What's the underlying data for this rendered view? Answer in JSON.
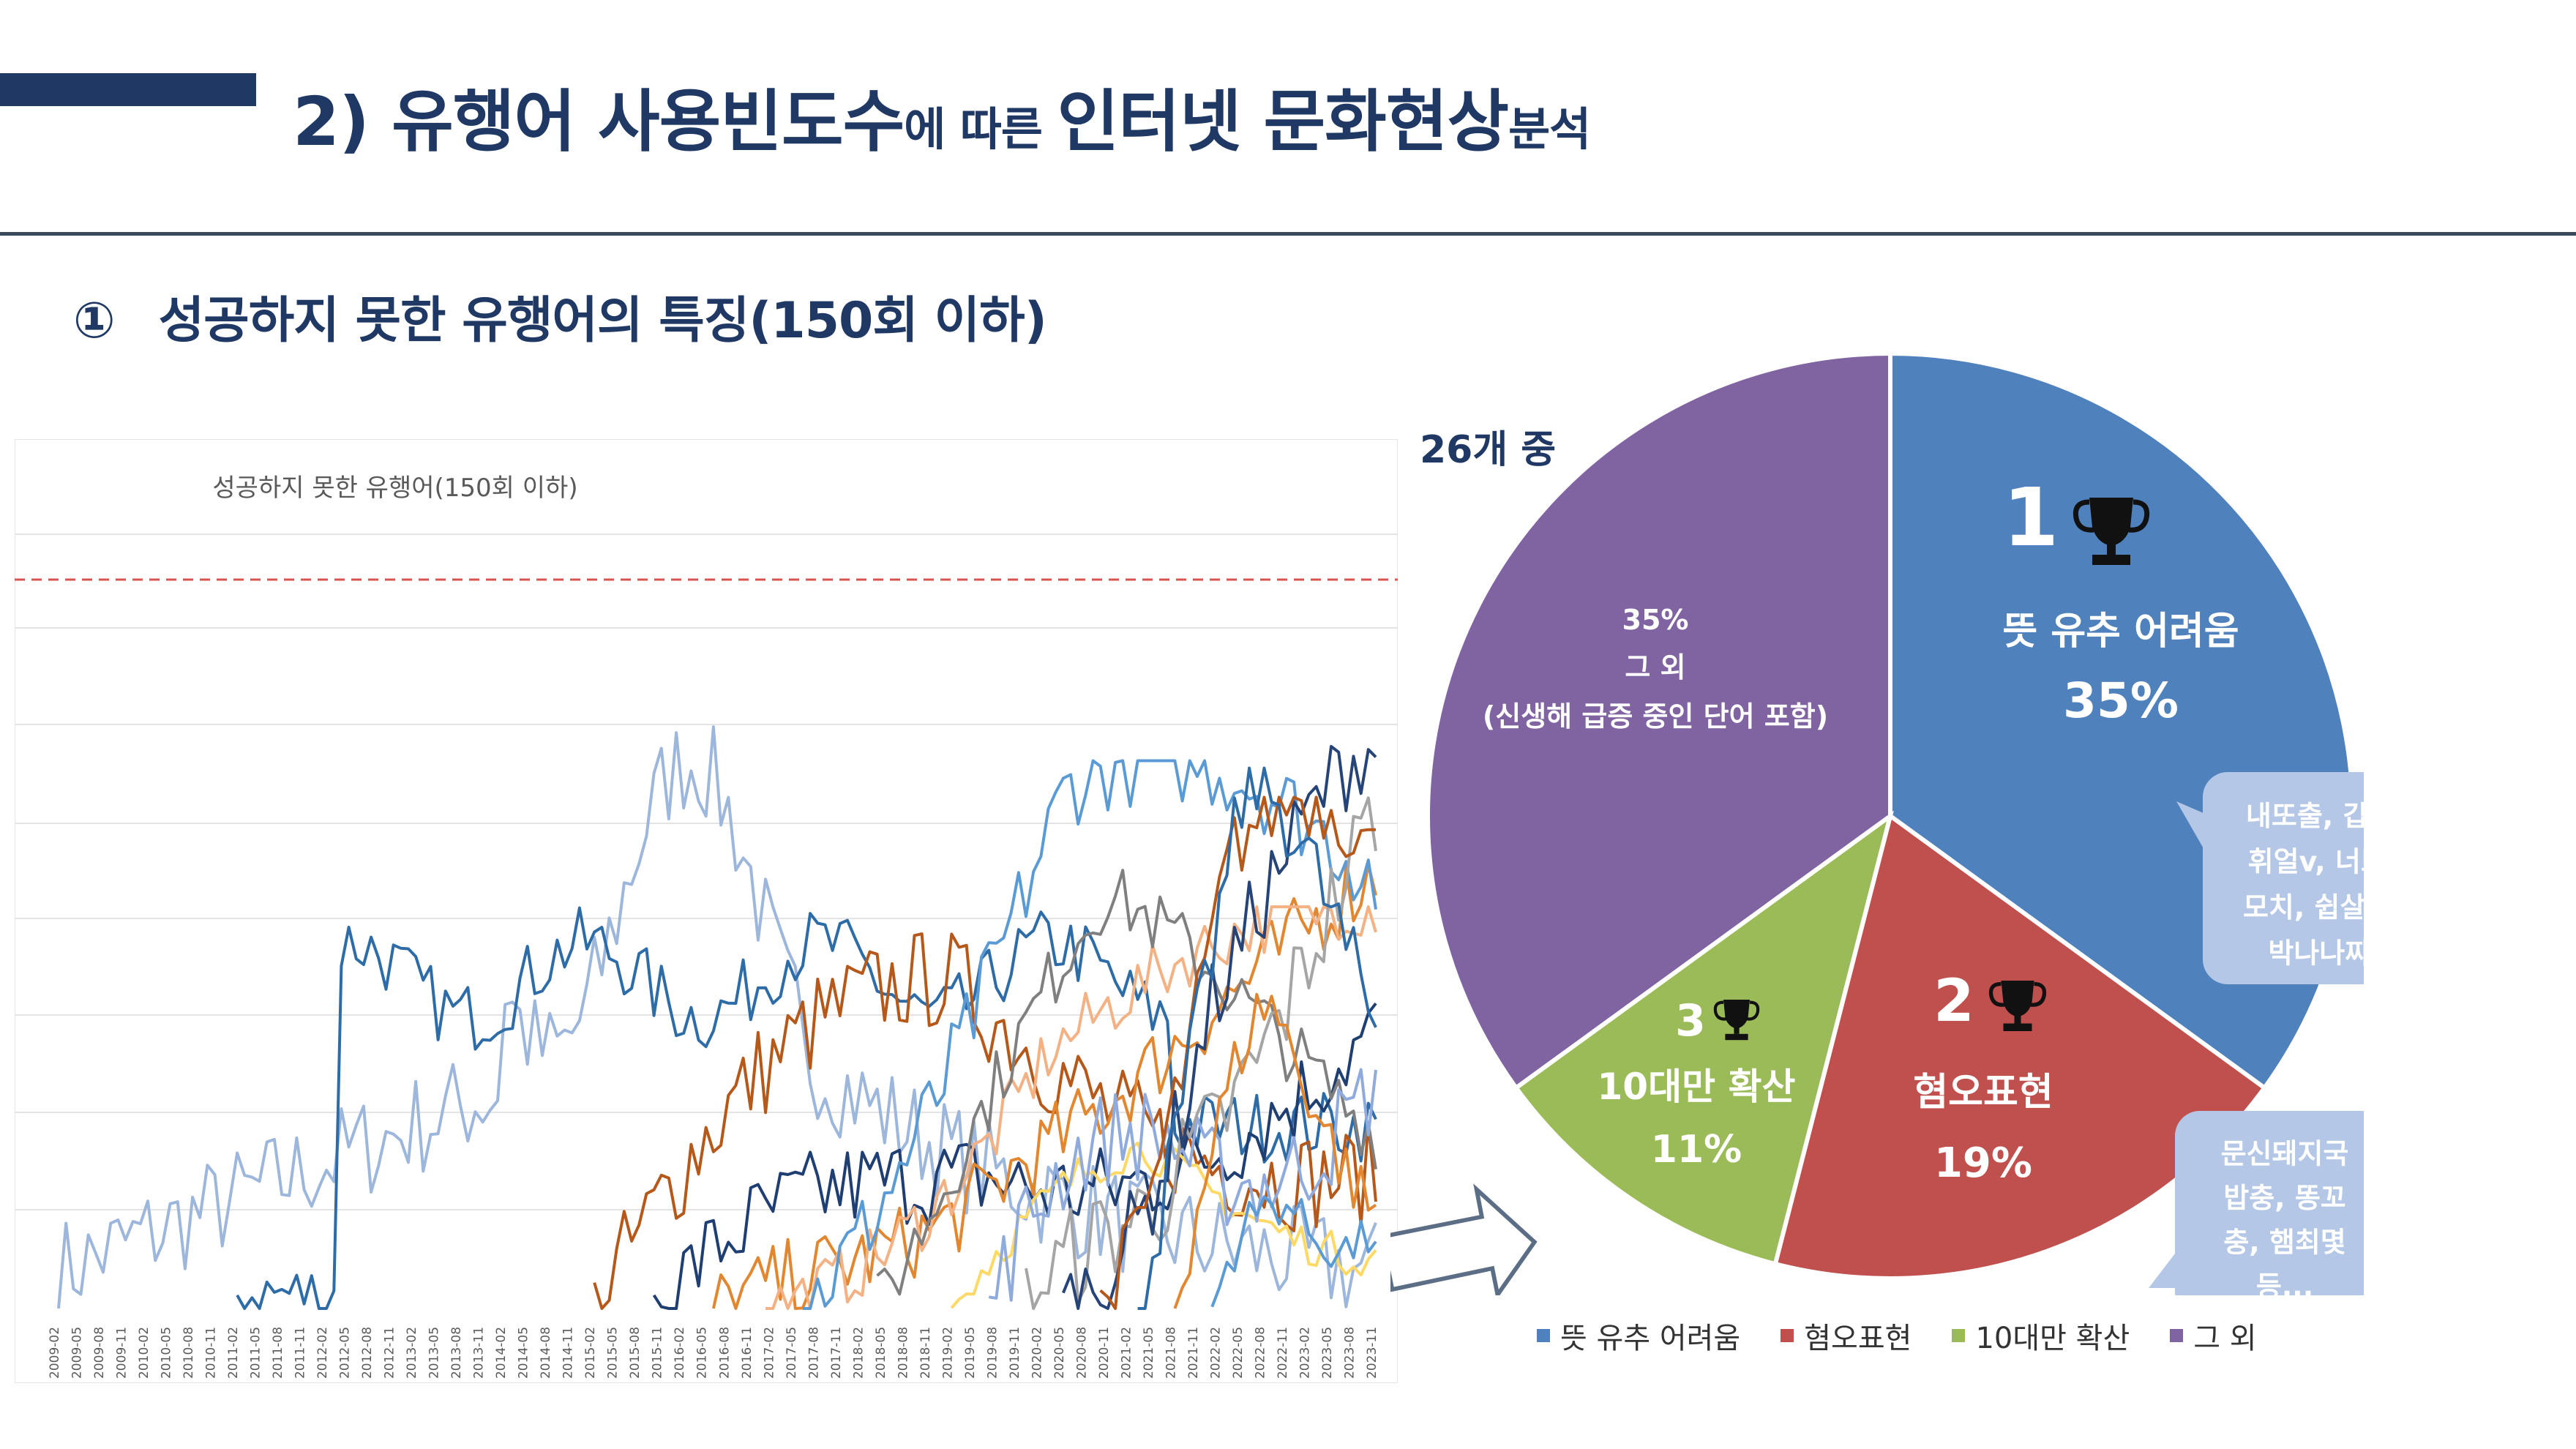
{
  "header": {
    "title_main": "2) 유행어 사용빈도수",
    "title_small1": "에 따른 ",
    "title_main2": "인터넷 문화현상",
    "title_small2": "분석"
  },
  "section": {
    "number": "①",
    "title": "성공하지 못한 유행어의 특징(150회 이하)"
  },
  "pie_info": {
    "count_label": "26개 중"
  },
  "colors": {
    "navy": "#1f3864",
    "blue": "#4f81bd",
    "red": "#c0504d",
    "green": "#9bbb59",
    "purple": "#8064a2",
    "bubble": "#b4c7e7"
  },
  "chart_data": [
    {
      "type": "line",
      "title": "성공하지 못한 유행어(150회 이하)",
      "x_range": [
        "2009-02",
        "2023-11"
      ],
      "x_tick_labels": [
        "2009-02",
        "2009-05",
        "2009-08",
        "2009-11",
        "2010-02",
        "2010-05",
        "2010-08",
        "2010-11",
        "2011-02",
        "2011-05",
        "2011-08",
        "2011-11",
        "2012-02",
        "2012-05",
        "2012-08",
        "2012-11",
        "2013-02",
        "2013-05",
        "2013-08",
        "2013-11",
        "2014-02",
        "2014-05",
        "2014-08",
        "2014-11",
        "2015-02",
        "2015-05",
        "2015-08",
        "2015-11",
        "2016-02",
        "2016-05",
        "2016-08",
        "2016-11",
        "2017-02",
        "2017-05",
        "2017-08",
        "2017-11",
        "2018-02",
        "2018-05",
        "2018-08",
        "2018-11",
        "2019-02",
        "2019-05",
        "2019-08",
        "2019-11",
        "2020-02",
        "2020-05",
        "2020-08",
        "2020-11",
        "2021-02",
        "2021-05",
        "2021-08",
        "2021-11",
        "2022-02",
        "2022-05",
        "2022-08",
        "2022-11",
        "2023-02",
        "2023-05",
        "2023-08",
        "2023-11"
      ],
      "threshold_line": "dashed-red",
      "series_colors": [
        "#9db6dc",
        "#2e6ca8",
        "#b5581a",
        "#1f3e72",
        "#e2862f",
        "#f4b183",
        "#5b9bd5",
        "#7f7f7f",
        "#ffd966",
        "#8faadc",
        "#a5a5a5",
        "#264478"
      ],
      "note": "26 overlapping monthly frequency series, each peaking at or below 150"
    },
    {
      "type": "pie",
      "slices": [
        {
          "name": "뜻 유추 어려움",
          "value": 35,
          "rank": "1",
          "label": "뜻 유추 어려움",
          "pct": "35%",
          "examples": [
            "내또출, 갑통알, h",
            "휘얼v, 너또다, 당",
            "모치, 쉽살재빙, 박",
            "박나나짜짜 ..."
          ]
        },
        {
          "name": "혐오표현",
          "value": 19,
          "rank": "2",
          "label": "혐오표현",
          "pct": "19%",
          "examples": [
            "문신돼지국",
            "밥충, 똥꼬",
            "충, 햄최몇",
            "등..."
          ]
        },
        {
          "name": "10대만 확산",
          "value": 11,
          "rank": "3",
          "label": "10대만 확산",
          "pct": "11%"
        },
        {
          "name": "그 외",
          "value": 35,
          "pct": "35%",
          "label": "그 외",
          "sublabel": "(신생해 급증 중인 단어 포함)"
        }
      ],
      "legend": [
        "뜻 유추 어려움",
        "혐오표현",
        "10대만 확산",
        "그 외"
      ],
      "legend_placement": "bottom"
    }
  ]
}
